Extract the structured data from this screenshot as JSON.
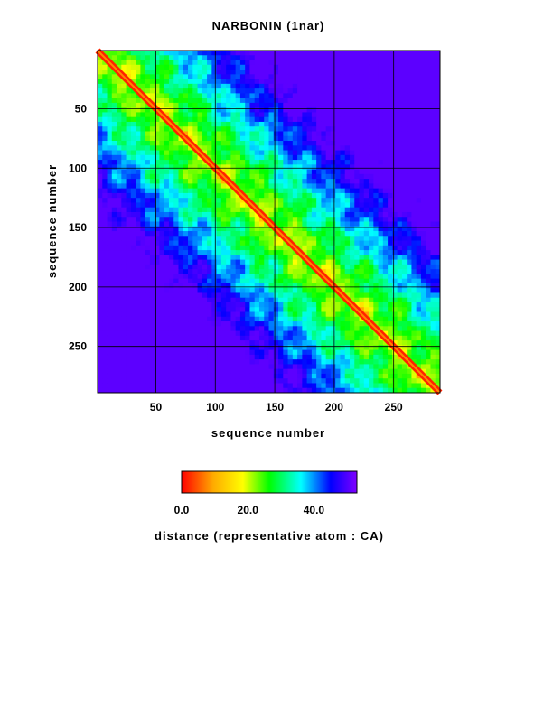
{
  "chart_data": {
    "type": "heatmap",
    "title": "NARBONIN (1nar)",
    "xlabel": "sequence number",
    "ylabel": "sequence number",
    "x_range": [
      1,
      289
    ],
    "y_range": [
      1,
      289
    ],
    "x_ticks": [
      50,
      100,
      150,
      200,
      250
    ],
    "y_ticks": [
      50,
      100,
      150,
      200,
      250
    ],
    "y_inverted": true,
    "grid": true,
    "contour_lines": true,
    "colorbar": {
      "label": "distance (representative atom : CA)",
      "min": 0.0,
      "max": 53.0,
      "ticks": [
        0.0,
        20.0,
        40.0
      ],
      "tick_labels": [
        "0.0",
        "20.0",
        "40.0"
      ],
      "colormap": [
        "#ff0000",
        "#ffff00",
        "#00ff00",
        "#00ffff",
        "#0000ff",
        "#8000ff"
      ]
    }
  }
}
